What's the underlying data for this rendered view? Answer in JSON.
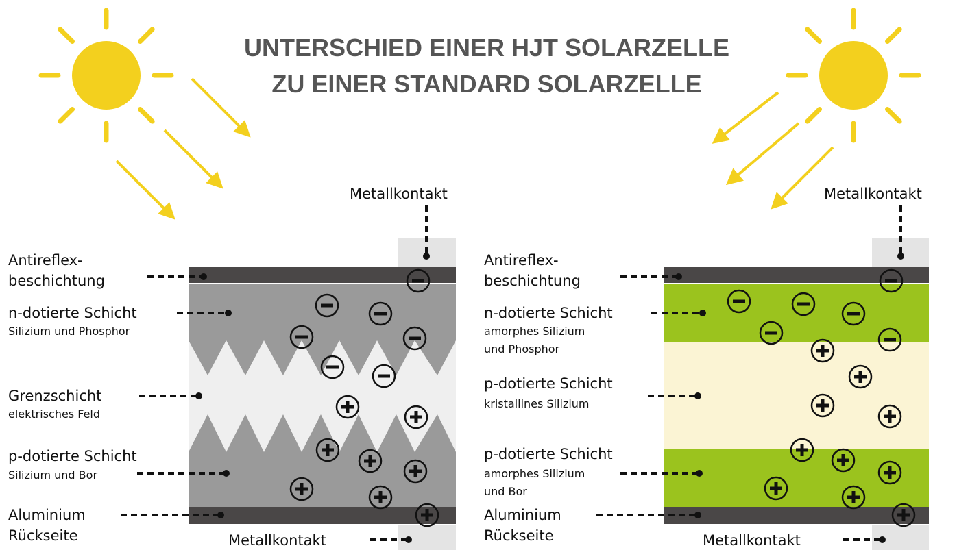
{
  "header": {
    "title_lines": [
      "UNTERSCHIED EINER HJT SOLARZELLE",
      "ZU EINER STANDARD SOLARZELLE"
    ]
  },
  "standard_cell": {
    "top_contact": "Metallkontakt",
    "bottom_contact": "Metallkontakt",
    "layers": [
      {
        "title_lines": [
          "Antireflex-",
          "beschichtung"
        ]
      },
      {
        "title_lines": [
          "n-dotierte Schicht"
        ],
        "detail_lines": [
          "Silizium und Phosphor"
        ]
      },
      {
        "title_lines": [
          "Grenzschicht"
        ],
        "detail_lines": [
          "elektrisches Feld"
        ]
      },
      {
        "title_lines": [
          "p-dotierte Schicht"
        ],
        "detail_lines": [
          "Silizium und Bor"
        ]
      },
      {
        "title_lines": [
          "Aluminium",
          "Rückseite"
        ]
      }
    ]
  },
  "hjt_cell": {
    "top_contact": "Metallkontakt",
    "bottom_contact": "Metallkontakt",
    "layers": [
      {
        "title_lines": [
          "Antireflex-",
          "beschichtung"
        ]
      },
      {
        "title_lines": [
          "n-dotierte Schicht"
        ],
        "detail_lines": [
          "amorphes Silizium",
          "und Phosphor"
        ]
      },
      {
        "title_lines": [
          "p-dotierte Schicht"
        ],
        "detail_lines": [
          "kristallines Silizium"
        ]
      },
      {
        "title_lines": [
          "p-dotierte Schicht"
        ],
        "detail_lines": [
          "amorphes Silizium",
          " und Bor"
        ]
      },
      {
        "title_lines": [
          "Aluminium",
          "Rückseite"
        ]
      }
    ]
  }
}
